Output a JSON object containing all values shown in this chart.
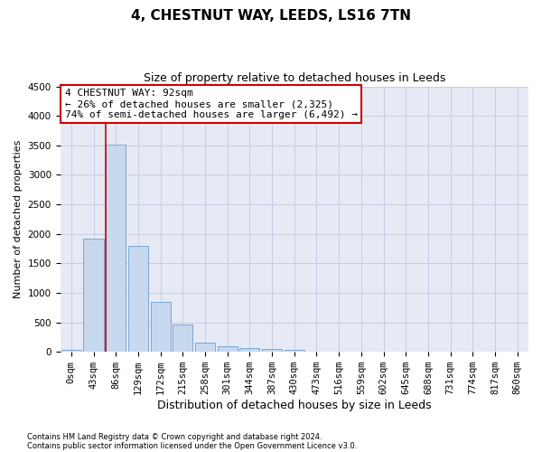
{
  "title": "4, CHESTNUT WAY, LEEDS, LS16 7TN",
  "subtitle": "Size of property relative to detached houses in Leeds",
  "xlabel": "Distribution of detached houses by size in Leeds",
  "ylabel": "Number of detached properties",
  "bar_color": "#c8d8ef",
  "bar_edge_color": "#7aa8d4",
  "ax_bg_color": "#e6eaf5",
  "background_color": "#ffffff",
  "grid_color": "#c8cce0",
  "categories": [
    "0sqm",
    "43sqm",
    "86sqm",
    "129sqm",
    "172sqm",
    "215sqm",
    "258sqm",
    "301sqm",
    "344sqm",
    "387sqm",
    "430sqm",
    "473sqm",
    "516sqm",
    "559sqm",
    "602sqm",
    "645sqm",
    "688sqm",
    "731sqm",
    "774sqm",
    "817sqm",
    "860sqm"
  ],
  "values": [
    40,
    1920,
    3510,
    1790,
    840,
    460,
    160,
    95,
    65,
    50,
    40,
    5,
    5,
    3,
    3,
    2,
    2,
    2,
    2,
    2,
    2
  ],
  "ylim": [
    0,
    4500
  ],
  "yticks": [
    0,
    500,
    1000,
    1500,
    2000,
    2500,
    3000,
    3500,
    4000,
    4500
  ],
  "vline_color": "#cc0000",
  "annotation_title": "4 CHESTNUT WAY: 92sqm",
  "annotation_line1": "← 26% of detached houses are smaller (2,325)",
  "annotation_line2": "74% of semi-detached houses are larger (6,492) →",
  "annotation_box_color": "#cc0000",
  "footnote1": "Contains HM Land Registry data © Crown copyright and database right 2024.",
  "footnote2": "Contains public sector information licensed under the Open Government Licence v3.0.",
  "title_fontsize": 11,
  "subtitle_fontsize": 9,
  "ylabel_fontsize": 8,
  "xlabel_fontsize": 9,
  "tick_fontsize": 7.5,
  "annot_fontsize": 8
}
